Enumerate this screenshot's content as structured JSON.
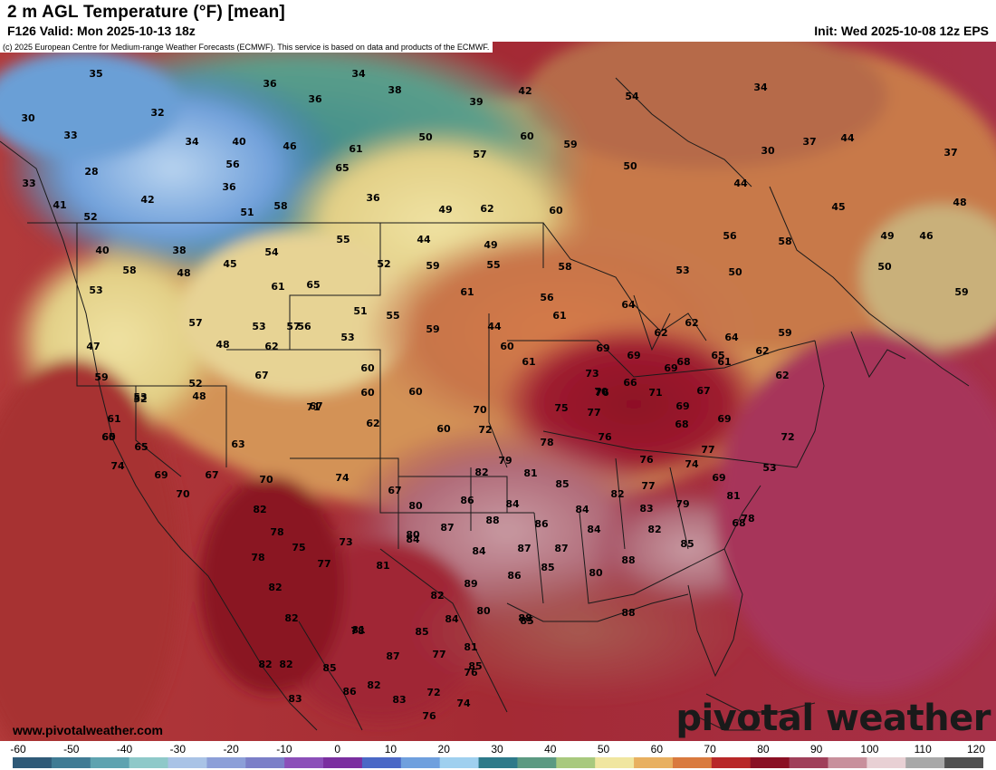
{
  "header": {
    "title": "2 m AGL Temperature (°F) [mean]",
    "valid": "F126 Valid: Mon 2025-10-13 18z",
    "init": "Init: Wed 2025-10-08 12z EPS"
  },
  "copyright": "(c) 2025 European Centre for Medium-range Weather Forecasts (ECMWF). This service is based on data and products of the ECMWF.",
  "footer": {
    "site": "www.pivotalweather.com",
    "brand": "pivotal weather"
  },
  "colorbar": {
    "ticks": [
      "-60",
      "-50",
      "-40",
      "-30",
      "-20",
      "-10",
      "0",
      "10",
      "20",
      "30",
      "40",
      "50",
      "60",
      "70",
      "80",
      "90",
      "100",
      "110",
      "120"
    ],
    "colors": [
      "#2f5a78",
      "#3f7b94",
      "#5ea3b0",
      "#8ec9c9",
      "#a9c3e6",
      "#8c9fd8",
      "#7b7fc8",
      "#8b4fb9",
      "#7a2fa0",
      "#4a68c6",
      "#6fa0de",
      "#9fd0ef",
      "#2d7a8a",
      "#5b9a82",
      "#a8c97e",
      "#f0e6a0",
      "#e8b060",
      "#d97a3e",
      "#b82828",
      "#8a1024",
      "#a0405a",
      "#c8909c",
      "#e8d0d4",
      "#a8a8a8",
      "#505050"
    ]
  },
  "values": [
    "35",
    "34",
    "36",
    "38",
    "42",
    "54",
    "36",
    "34",
    "32",
    "39",
    "30",
    "33",
    "34",
    "40",
    "46",
    "50",
    "60",
    "59",
    "37",
    "44",
    "61",
    "57",
    "30",
    "37",
    "28",
    "56",
    "65",
    "50",
    "36",
    "44",
    "48",
    "33",
    "36",
    "42",
    "51",
    "58",
    "49",
    "62",
    "60",
    "45",
    "41",
    "52",
    "56",
    "58",
    "49",
    "46",
    "40",
    "38",
    "55",
    "44",
    "49",
    "54",
    "45",
    "48",
    "52",
    "59",
    "55",
    "58",
    "53",
    "50",
    "50",
    "59",
    "58",
    "61",
    "65",
    "61",
    "53",
    "51",
    "44",
    "56",
    "55",
    "57",
    "53",
    "59",
    "61",
    "64",
    "62",
    "62",
    "53",
    "47",
    "69",
    "60",
    "69",
    "68",
    "65",
    "62",
    "60",
    "61",
    "59",
    "48",
    "73",
    "61",
    "70",
    "66",
    "64",
    "52",
    "60",
    "76",
    "62",
    "71",
    "69",
    "67",
    "60",
    "69",
    "68",
    "75",
    "67",
    "70",
    "77",
    "72",
    "78",
    "76",
    "69",
    "82",
    "79",
    "81",
    "85",
    "82",
    "77",
    "76",
    "74",
    "86",
    "84",
    "83",
    "79",
    "84",
    "80",
    "87",
    "88",
    "86",
    "87",
    "84",
    "82",
    "87",
    "84",
    "80",
    "84",
    "85",
    "81",
    "85",
    "88",
    "86",
    "82",
    "80",
    "88",
    "89",
    "84",
    "80",
    "85",
    "78",
    "85",
    "87",
    "77",
    "81",
    "86",
    "82",
    "83",
    "72",
    "76",
    "74",
    "76",
    "85",
    "88",
    "85",
    "82",
    "83",
    "82",
    "82",
    "81",
    "82",
    "78",
    "82",
    "78",
    "77",
    "75",
    "73",
    "74",
    "67",
    "71",
    "60",
    "67",
    "62",
    "63",
    "70",
    "53",
    "72",
    "68",
    "78",
    "81",
    "77",
    "69",
    "74",
    "65",
    "69",
    "70",
    "67",
    "61",
    "60",
    "65",
    "59",
    "53",
    "52",
    "48",
    "62",
    "57",
    "56",
    "56"
  ]
}
